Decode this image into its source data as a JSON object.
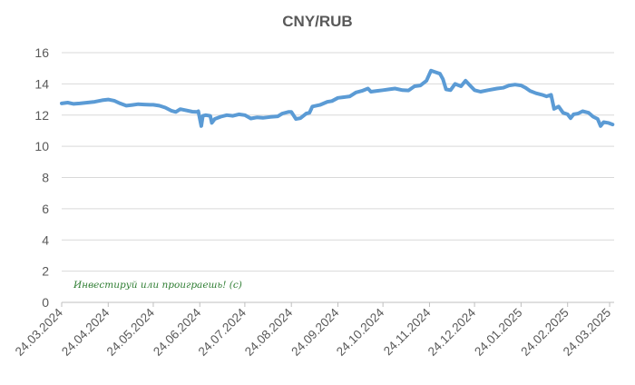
{
  "chart_data": {
    "type": "line",
    "title": "CNY/RUB",
    "xlabel": "",
    "ylabel": "",
    "ylim": [
      0,
      16
    ],
    "yticks": [
      0,
      2,
      4,
      6,
      8,
      10,
      12,
      14,
      16
    ],
    "xlim": [
      "2024-03-24",
      "2025-03-27"
    ],
    "x_tick_labels": [
      "24.03.2024",
      "24.04.2024",
      "24.05.2024",
      "24.06.2024",
      "24.07.2024",
      "24.08.2024",
      "24.09.2024",
      "24.10.2024",
      "24.11.2024",
      "24.12.2024",
      "24.01.2025",
      "24.02.2025",
      "24.03.2025"
    ],
    "x_tick_dates": [
      "2024-03-24",
      "2024-04-24",
      "2024-05-24",
      "2024-06-24",
      "2024-07-24",
      "2024-08-24",
      "2024-09-24",
      "2024-10-24",
      "2024-11-24",
      "2024-12-24",
      "2025-01-24",
      "2025-02-24",
      "2025-03-24"
    ],
    "grid": true,
    "legend": "none",
    "annotation": "Инвестируй или проиграешь! (с)",
    "series": [
      {
        "color": "#5b9bd5",
        "points": [
          [
            "2024-03-24",
            12.75
          ],
          [
            "2024-03-28",
            12.8
          ],
          [
            "2024-04-01",
            12.72
          ],
          [
            "2024-04-05",
            12.75
          ],
          [
            "2024-04-10",
            12.8
          ],
          [
            "2024-04-15",
            12.85
          ],
          [
            "2024-04-20",
            12.95
          ],
          [
            "2024-04-24",
            13.0
          ],
          [
            "2024-04-28",
            12.92
          ],
          [
            "2024-05-02",
            12.75
          ],
          [
            "2024-05-06",
            12.6
          ],
          [
            "2024-05-10",
            12.65
          ],
          [
            "2024-05-14",
            12.7
          ],
          [
            "2024-05-18",
            12.68
          ],
          [
            "2024-05-22",
            12.66
          ],
          [
            "2024-05-24",
            12.66
          ],
          [
            "2024-05-28",
            12.6
          ],
          [
            "2024-06-01",
            12.48
          ],
          [
            "2024-06-05",
            12.28
          ],
          [
            "2024-06-08",
            12.2
          ],
          [
            "2024-06-11",
            12.38
          ],
          [
            "2024-06-15",
            12.3
          ],
          [
            "2024-06-19",
            12.22
          ],
          [
            "2024-06-22",
            12.2
          ],
          [
            "2024-06-23",
            12.25
          ],
          [
            "2024-06-25",
            11.3
          ],
          [
            "2024-06-26",
            11.95
          ],
          [
            "2024-06-28",
            12.0
          ],
          [
            "2024-07-01",
            11.95
          ],
          [
            "2024-07-02",
            11.5
          ],
          [
            "2024-07-04",
            11.75
          ],
          [
            "2024-07-08",
            11.9
          ],
          [
            "2024-07-12",
            12.0
          ],
          [
            "2024-07-16",
            11.95
          ],
          [
            "2024-07-20",
            12.05
          ],
          [
            "2024-07-24",
            12.0
          ],
          [
            "2024-07-28",
            11.78
          ],
          [
            "2024-08-01",
            11.85
          ],
          [
            "2024-08-05",
            11.82
          ],
          [
            "2024-08-10",
            11.88
          ],
          [
            "2024-08-15",
            11.92
          ],
          [
            "2024-08-18",
            12.1
          ],
          [
            "2024-08-22",
            12.2
          ],
          [
            "2024-08-24",
            12.2
          ],
          [
            "2024-08-27",
            11.75
          ],
          [
            "2024-08-30",
            11.8
          ],
          [
            "2024-09-03",
            12.1
          ],
          [
            "2024-09-05",
            12.15
          ],
          [
            "2024-09-07",
            12.55
          ],
          [
            "2024-09-12",
            12.65
          ],
          [
            "2024-09-17",
            12.85
          ],
          [
            "2024-09-20",
            12.9
          ],
          [
            "2024-09-24",
            13.1
          ],
          [
            "2024-09-28",
            13.15
          ],
          [
            "2024-10-02",
            13.2
          ],
          [
            "2024-10-06",
            13.45
          ],
          [
            "2024-10-10",
            13.55
          ],
          [
            "2024-10-14",
            13.7
          ],
          [
            "2024-10-16",
            13.5
          ],
          [
            "2024-10-20",
            13.55
          ],
          [
            "2024-10-24",
            13.6
          ],
          [
            "2024-10-28",
            13.65
          ],
          [
            "2024-11-01",
            13.7
          ],
          [
            "2024-11-06",
            13.6
          ],
          [
            "2024-11-10",
            13.58
          ],
          [
            "2024-11-14",
            13.85
          ],
          [
            "2024-11-18",
            13.9
          ],
          [
            "2024-11-22",
            14.2
          ],
          [
            "2024-11-25",
            14.85
          ],
          [
            "2024-11-28",
            14.75
          ],
          [
            "2024-12-01",
            14.65
          ],
          [
            "2024-12-03",
            14.3
          ],
          [
            "2024-12-05",
            13.65
          ],
          [
            "2024-12-08",
            13.6
          ],
          [
            "2024-12-11",
            14.0
          ],
          [
            "2024-12-15",
            13.85
          ],
          [
            "2024-12-18",
            14.2
          ],
          [
            "2024-12-21",
            13.9
          ],
          [
            "2024-12-24",
            13.6
          ],
          [
            "2024-12-28",
            13.5
          ],
          [
            "2025-01-02",
            13.6
          ],
          [
            "2025-01-08",
            13.7
          ],
          [
            "2025-01-12",
            13.75
          ],
          [
            "2025-01-16",
            13.9
          ],
          [
            "2025-01-20",
            13.95
          ],
          [
            "2025-01-24",
            13.9
          ],
          [
            "2025-01-27",
            13.75
          ],
          [
            "2025-01-30",
            13.55
          ],
          [
            "2025-02-03",
            13.4
          ],
          [
            "2025-02-07",
            13.3
          ],
          [
            "2025-02-10",
            13.2
          ],
          [
            "2025-02-13",
            13.3
          ],
          [
            "2025-02-15",
            12.4
          ],
          [
            "2025-02-18",
            12.55
          ],
          [
            "2025-02-21",
            12.15
          ],
          [
            "2025-02-24",
            12.05
          ],
          [
            "2025-02-26",
            11.8
          ],
          [
            "2025-02-28",
            12.05
          ],
          [
            "2025-03-03",
            12.1
          ],
          [
            "2025-03-06",
            12.25
          ],
          [
            "2025-03-10",
            12.15
          ],
          [
            "2025-03-13",
            11.9
          ],
          [
            "2025-03-16",
            11.75
          ],
          [
            "2025-03-18",
            11.3
          ],
          [
            "2025-03-20",
            11.55
          ],
          [
            "2025-03-23",
            11.5
          ],
          [
            "2025-03-26",
            11.4
          ]
        ]
      }
    ]
  }
}
